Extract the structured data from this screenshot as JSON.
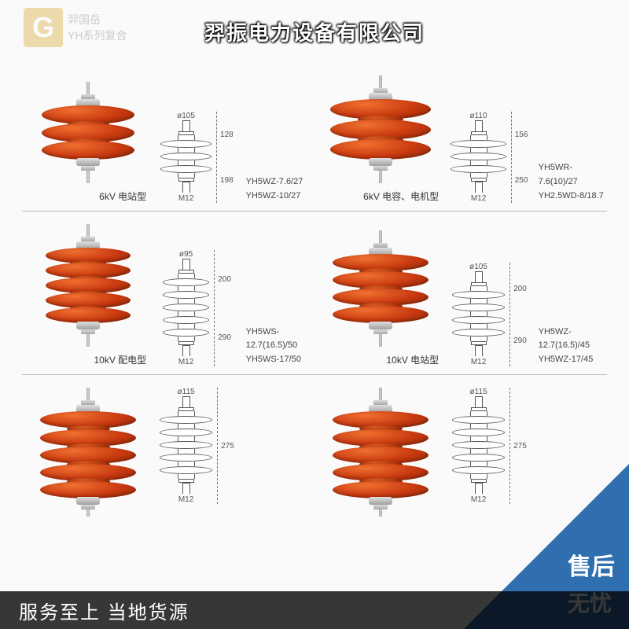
{
  "watermark": {
    "logo_letter": "G",
    "line1": "羿国岳",
    "line2": "YH系列复合"
  },
  "company_title": "羿振电力设备有限公司",
  "bottom_text": "服务至上    当地货源",
  "badge": {
    "line1": "售后",
    "line2": "无忧"
  },
  "colors": {
    "shed": "#c93a10",
    "badge_bg": "#2f6fb0",
    "logo_bg": "#d4a017",
    "border": "#bbbbbb"
  },
  "rows": [
    {
      "cells": [
        {
          "sheds": 3,
          "shed_w": 118,
          "shed_h": 24,
          "neck_h": 8,
          "type_label": "6kV 电站型",
          "models": [
            "YH5WZ-7.6/27",
            "YH5WZ-10/27"
          ],
          "dims": {
            "top_dia": "ø105",
            "h1": "128",
            "h2": "198",
            "bolt": "M12"
          }
        },
        {
          "sheds": 3,
          "shed_w": 128,
          "shed_h": 26,
          "neck_h": 10,
          "type_label": "6kV 电容、电机型",
          "models": [
            "YH5WR-7.6(10)/27",
            "YH2.5WD-8/18.7"
          ],
          "dims": {
            "top_dia": "ø110",
            "h1": "156",
            "h2": "250",
            "bolt": "M12"
          }
        }
      ]
    },
    {
      "cells": [
        {
          "sheds": 5,
          "shed_w": 108,
          "shed_h": 20,
          "neck_h": 7,
          "type_label": "10kV 配电型",
          "models": [
            "YH5WS-12.7(16.5)/50",
            "YH5WS-17/50"
          ],
          "dims": {
            "top_dia": "ø95",
            "h1": "200",
            "h2": "290",
            "bolt": "M12"
          }
        },
        {
          "sheds": 4,
          "shed_w": 122,
          "shed_h": 22,
          "neck_h": 9,
          "type_label": "10kV 电站型",
          "models": [
            "YH5WZ-12.7(16.5)/45",
            "YH5WZ-17/45"
          ],
          "dims": {
            "top_dia": "ø105",
            "h1": "200",
            "h2": "290",
            "bolt": "M12"
          }
        }
      ]
    },
    {
      "cells": [
        {
          "sheds": 5,
          "shed_w": 122,
          "shed_h": 22,
          "neck_h": 9,
          "type_label": "",
          "models": [],
          "dims": {
            "top_dia": "ø115",
            "h1": "275",
            "h2": "",
            "bolt": "M12"
          },
          "partial": true
        },
        {
          "sheds": 5,
          "shed_w": 122,
          "shed_h": 22,
          "neck_h": 9,
          "type_label": "",
          "models": [],
          "dims": {
            "top_dia": "ø115",
            "h1": "275",
            "h2": "",
            "bolt": "M12"
          },
          "partial": true
        }
      ]
    }
  ]
}
